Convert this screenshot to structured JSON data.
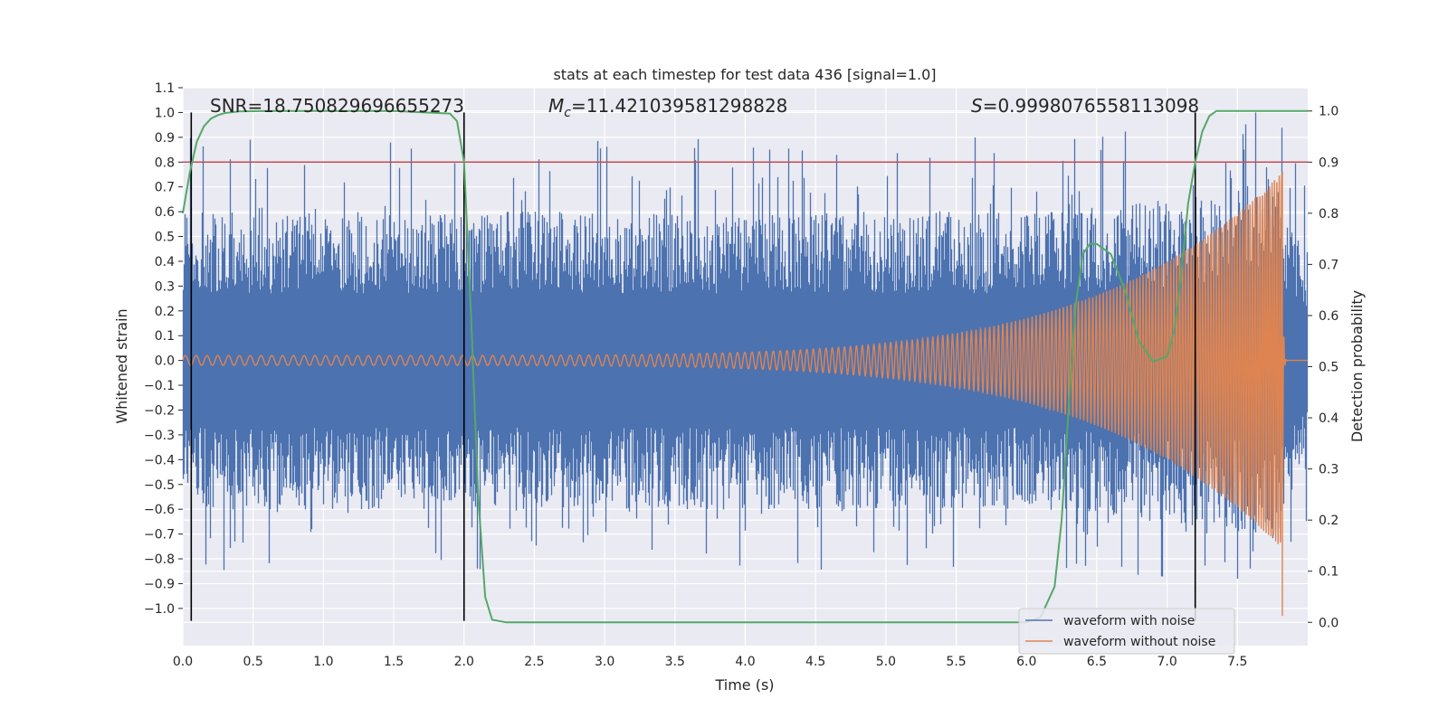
{
  "chart_data": {
    "type": "line",
    "title": "stats at each timestep for test data 436 [signal=1.0]",
    "xlabel": "Time (s)",
    "ylabel": "Whitened strain",
    "y2label": "Detection probability",
    "xlim": [
      0.0,
      8.0
    ],
    "ylim": [
      -1.15,
      1.1
    ],
    "y2lim": [
      -0.0455,
      1.0455
    ],
    "x_ticks": [
      0.0,
      0.5,
      1.0,
      1.5,
      2.0,
      2.5,
      3.0,
      3.5,
      4.0,
      4.5,
      5.0,
      5.5,
      6.0,
      6.5,
      7.0,
      7.5
    ],
    "x_tick_labels": [
      "0.0",
      "0.5",
      "1.0",
      "1.5",
      "2.0",
      "2.5",
      "3.0",
      "3.5",
      "4.0",
      "4.5",
      "5.0",
      "5.5",
      "6.0",
      "6.5",
      "7.0",
      "7.5"
    ],
    "y_ticks": [
      1.1,
      1.0,
      0.9,
      0.8,
      0.7,
      0.6,
      0.5,
      0.4,
      0.3,
      0.2,
      0.1,
      0.0,
      -0.1,
      -0.2,
      -0.3,
      -0.4,
      -0.5,
      -0.6,
      -0.7,
      -0.8,
      -0.9,
      -1.0
    ],
    "y_tick_labels": [
      "1.1",
      "1.0",
      "0.9",
      "0.8",
      "0.7",
      "0.6",
      "0.5",
      "0.4",
      "0.3",
      "0.2",
      "0.1",
      "0.0",
      "−0.1",
      "−0.2",
      "−0.3",
      "−0.4",
      "−0.5",
      "−0.6",
      "−0.7",
      "−0.8",
      "−0.9",
      "−1.0"
    ],
    "y2_ticks": [
      1.0,
      0.9,
      0.8,
      0.7,
      0.6,
      0.5,
      0.4,
      0.3,
      0.2,
      0.1,
      0.0
    ],
    "y2_tick_labels": [
      "1.0",
      "0.9",
      "0.8",
      "0.7",
      "0.6",
      "0.5",
      "0.4",
      "0.3",
      "0.2",
      "0.1",
      "0.0"
    ],
    "grid": true,
    "legend_position": "bottom-right",
    "annotations": {
      "snr": "SNR=18.750829696655273",
      "mc_symbol": "M",
      "mc_sub": "c",
      "mc_value": "=11.421039581298828",
      "s_symbol": "S",
      "s_value": "=0.9998076558113098"
    },
    "threshold": {
      "value": 0.8,
      "color": "#c44e52"
    },
    "vertical_markers": [
      0.06,
      2.0,
      7.2
    ],
    "series": [
      {
        "name": "waveform with noise",
        "color": "#4c72b0",
        "envelope": {
          "t": [
            0.0,
            6.0,
            6.5,
            7.0,
            7.3,
            7.5,
            7.7,
            7.82,
            7.85,
            8.0
          ],
          "base_upper": [
            0.6,
            0.6,
            0.62,
            0.65,
            0.68,
            0.7,
            0.72,
            0.75,
            0.55,
            0.45
          ],
          "base_lower": [
            -0.6,
            -0.6,
            -0.62,
            -0.65,
            -0.68,
            -0.7,
            -0.72,
            -0.75,
            -0.55,
            -0.45
          ],
          "peak_max": 1.0,
          "peak_min": -0.88
        }
      },
      {
        "name": "waveform without noise",
        "color": "#dd8452",
        "chirp": {
          "t_start": 0.0,
          "t_merger": 7.82,
          "t_end": 8.0,
          "amplitude_start": 0.02,
          "amplitude_peak": 0.76,
          "cycles_per_second_start": 13,
          "cycles_per_second_end": 60
        }
      },
      {
        "name": "detection probability",
        "color": "#55a868",
        "axis": "y2",
        "t": [
          0.0,
          0.05,
          0.1,
          0.15,
          0.2,
          0.25,
          0.3,
          0.4,
          0.6,
          1.0,
          1.5,
          1.9,
          1.95,
          2.0,
          2.05,
          2.1,
          2.15,
          2.2,
          2.3,
          2.4,
          2.5,
          3.0,
          4.0,
          5.0,
          6.0,
          6.1,
          6.2,
          6.25,
          6.3,
          6.35,
          6.4,
          6.45,
          6.5,
          6.6,
          6.7,
          6.8,
          6.9,
          7.0,
          7.05,
          7.1,
          7.15,
          7.2,
          7.25,
          7.3,
          7.35,
          7.4,
          7.5,
          8.0
        ],
        "values": [
          0.8,
          0.88,
          0.94,
          0.97,
          0.985,
          0.992,
          0.996,
          0.999,
          1.0,
          1.0,
          1.0,
          0.995,
          0.98,
          0.9,
          0.6,
          0.25,
          0.05,
          0.005,
          0.0,
          0.0,
          0.0,
          0.0,
          0.0,
          0.0,
          0.0,
          0.01,
          0.07,
          0.2,
          0.42,
          0.62,
          0.72,
          0.74,
          0.74,
          0.72,
          0.65,
          0.55,
          0.51,
          0.52,
          0.57,
          0.68,
          0.82,
          0.9,
          0.96,
          0.99,
          1.0,
          1.0,
          1.0,
          1.0
        ]
      }
    ]
  }
}
